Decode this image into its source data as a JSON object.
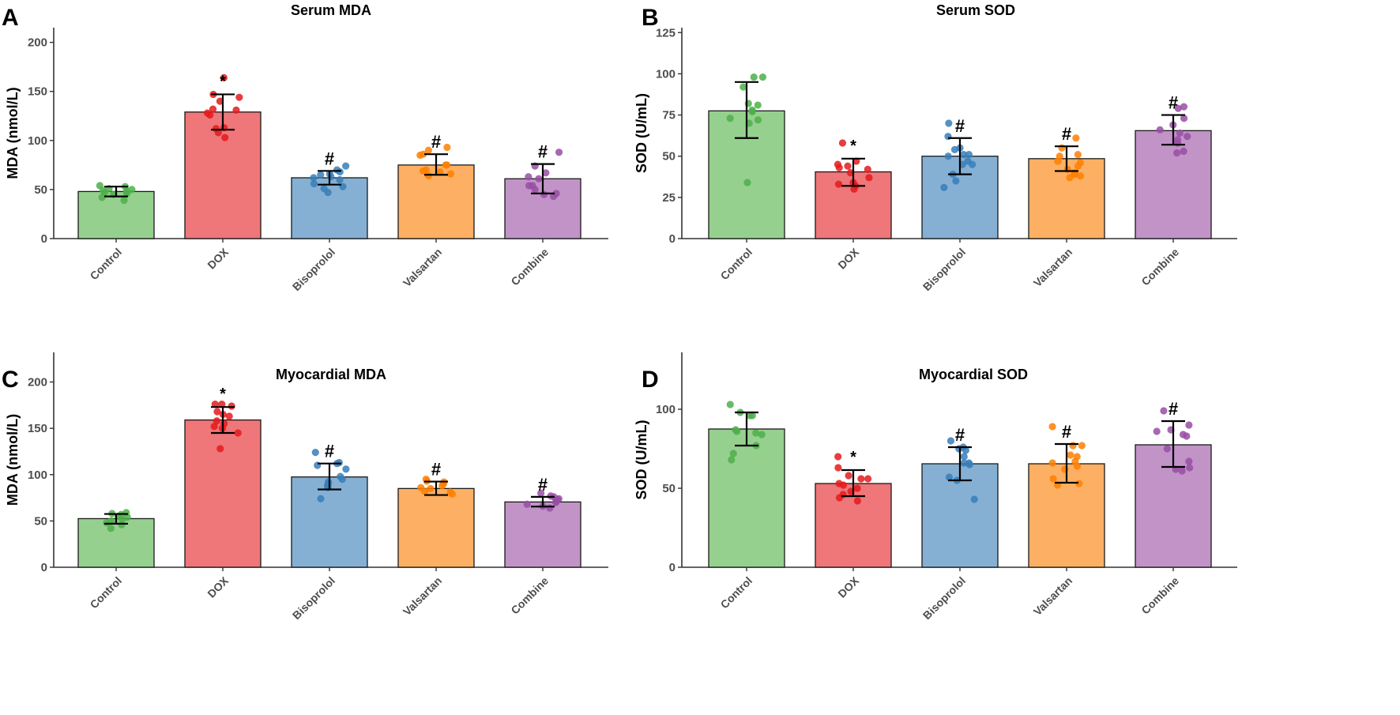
{
  "chart_data": [
    {
      "panel": "A",
      "type": "bar",
      "title": "Serum MDA",
      "ylabel": "MDA (nmol/L)",
      "xlabel": "",
      "categories": [
        "Control",
        "DOX",
        "Bisoprolol",
        "Valsartan",
        "Combine"
      ],
      "colors": [
        "#96d08f",
        "#ef7679",
        "#85b0d4",
        "#fdb063",
        "#c193c7"
      ],
      "point_colors": [
        "#4daf4a",
        "#e41a1c",
        "#377eb8",
        "#ff7f00",
        "#984ea3"
      ],
      "ylim": [
        0,
        215
      ],
      "yticks": [
        0,
        50,
        100,
        150,
        200
      ],
      "values": [
        48,
        129,
        62,
        75,
        61
      ],
      "error": [
        [
          43,
          53
        ],
        [
          111,
          147
        ],
        [
          55,
          69
        ],
        [
          65,
          86
        ],
        [
          46,
          76
        ]
      ],
      "significance": [
        "",
        "*",
        "#",
        "#",
        "#"
      ],
      "points": [
        [
          39,
          42,
          45,
          46,
          47,
          48,
          49,
          50,
          51,
          53,
          54
        ],
        [
          103,
          108,
          112,
          113,
          126,
          128,
          131,
          132,
          140,
          144,
          147,
          164
        ],
        [
          47,
          51,
          53,
          56,
          60,
          62,
          63,
          65,
          66,
          68,
          70,
          74
        ],
        [
          64,
          66,
          68,
          69,
          70,
          75,
          75,
          85,
          86,
          90,
          93
        ],
        [
          43,
          45,
          46,
          50,
          54,
          54,
          61,
          63,
          67,
          74,
          88
        ]
      ]
    },
    {
      "panel": "B",
      "type": "bar",
      "title": "Serum SOD",
      "ylabel": "SOD (U/mL)",
      "xlabel": "",
      "categories": [
        "Control",
        "DOX",
        "Bisoprolol",
        "Valsartan",
        "Combine"
      ],
      "colors": [
        "#96d08f",
        "#ef7679",
        "#85b0d4",
        "#fdb063",
        "#c193c7"
      ],
      "point_colors": [
        "#4daf4a",
        "#e41a1c",
        "#377eb8",
        "#ff7f00",
        "#984ea3"
      ],
      "ylim": [
        0,
        128
      ],
      "yticks": [
        0,
        25,
        50,
        75,
        100,
        125
      ],
      "values": [
        77.5,
        40.5,
        50,
        48.5,
        65.5
      ],
      "error": [
        [
          61,
          95
        ],
        [
          32,
          48.5
        ],
        [
          39,
          61
        ],
        [
          41,
          56
        ],
        [
          57,
          75
        ]
      ],
      "significance": [
        "",
        "*",
        "#",
        "#",
        "#"
      ],
      "points": [
        [
          34,
          70,
          72,
          73,
          77,
          78,
          81,
          82,
          92,
          98,
          98
        ],
        [
          30,
          32,
          33,
          34,
          37,
          40,
          42,
          43,
          44,
          45,
          47,
          58
        ],
        [
          31,
          35,
          39,
          45,
          45,
          47,
          50,
          51,
          51,
          54,
          55,
          62,
          70
        ],
        [
          37,
          38,
          39,
          40,
          42,
          44,
          46,
          47,
          50,
          51,
          55,
          61
        ],
        [
          52,
          53,
          58,
          60,
          62,
          64,
          66,
          69,
          73,
          79,
          80
        ]
      ]
    },
    {
      "panel": "C",
      "type": "bar",
      "title": "Myocardial MDA",
      "ylabel": "MDA (nmol/L)",
      "xlabel": "",
      "categories": [
        "Control",
        "DOX",
        "Bisoprolol",
        "Valsartan",
        "Combine"
      ],
      "colors": [
        "#96d08f",
        "#ef7679",
        "#85b0d4",
        "#fdb063",
        "#c193c7"
      ],
      "point_colors": [
        "#4daf4a",
        "#e41a1c",
        "#377eb8",
        "#ff7f00",
        "#984ea3"
      ],
      "ylim": [
        0,
        232
      ],
      "yticks": [
        0,
        50,
        100,
        150,
        200
      ],
      "values": [
        52.5,
        159,
        97.5,
        85,
        70.5
      ],
      "error": [
        [
          47,
          57.5
        ],
        [
          145,
          173
        ],
        [
          84,
          112
        ],
        [
          78,
          92.5
        ],
        [
          65.5,
          76
        ]
      ],
      "significance": [
        "",
        "*",
        "#",
        "#",
        "#"
      ],
      "points": [
        [
          42,
          46,
          48,
          50,
          52,
          54,
          55,
          57,
          58,
          59
        ],
        [
          128,
          145,
          150,
          152,
          155,
          158,
          163,
          165,
          168,
          174,
          176,
          176
        ],
        [
          74,
          86,
          88,
          90,
          92,
          95,
          98,
          106,
          110,
          112,
          113,
          124
        ],
        [
          79,
          81,
          82,
          85,
          86,
          88,
          90,
          92,
          93,
          95
        ],
        [
          64,
          66,
          68,
          70,
          71,
          73,
          74,
          76,
          77,
          80
        ]
      ]
    },
    {
      "panel": "D",
      "type": "bar",
      "title": "Myocardial SOD",
      "ylabel": "SOD (U/mL)",
      "xlabel": "",
      "categories": [
        "Control",
        "DOX",
        "Bisoprolol",
        "Valsartan",
        "Combine"
      ],
      "colors": [
        "#96d08f",
        "#ef7679",
        "#85b0d4",
        "#fdb063",
        "#c193c7"
      ],
      "point_colors": [
        "#4daf4a",
        "#e41a1c",
        "#377eb8",
        "#ff7f00",
        "#984ea3"
      ],
      "ylim": [
        0,
        136
      ],
      "yticks": [
        0,
        50,
        100
      ],
      "values": [
        87.5,
        53,
        65.5,
        65.5,
        77.5
      ],
      "error": [
        [
          77,
          98
        ],
        [
          45,
          61.5
        ],
        [
          55,
          76
        ],
        [
          53.5,
          78
        ],
        [
          63.5,
          92.5
        ]
      ],
      "significance": [
        "",
        "*",
        "#",
        "#",
        "#"
      ],
      "points": [
        [
          68,
          72,
          77,
          84,
          85,
          86,
          87,
          96,
          96,
          98,
          103
        ],
        [
          42,
          44,
          46,
          48,
          50,
          52,
          53,
          56,
          56,
          58,
          63,
          70
        ],
        [
          43,
          55,
          57,
          65,
          66,
          66,
          70,
          74,
          75,
          76,
          80
        ],
        [
          52,
          53,
          56,
          62,
          64,
          66,
          67,
          70,
          71,
          77,
          77,
          89
        ],
        [
          61,
          62,
          63,
          67,
          75,
          83,
          84,
          86,
          87,
          90,
          99
        ]
      ]
    }
  ]
}
